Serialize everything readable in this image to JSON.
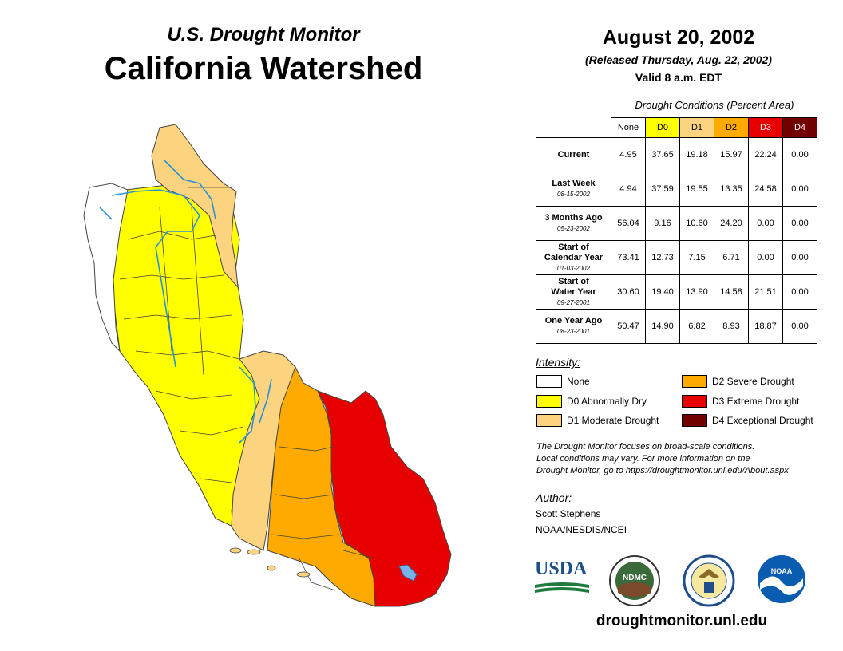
{
  "header": {
    "subtitle": "U.S. Drought Monitor",
    "title": "California Watershed",
    "date": "August 20, 2002",
    "released": "(Released Thursday, Aug. 22, 2002)",
    "valid": "Valid 8 a.m. EDT"
  },
  "table": {
    "title": "Drought Conditions (Percent Area)",
    "columns": [
      "None",
      "D0",
      "D1",
      "D2",
      "D3",
      "D4"
    ],
    "column_colors": [
      "#ffffff",
      "#ffff00",
      "#fcd37f",
      "#ffaa00",
      "#e60000",
      "#730000"
    ],
    "rows": [
      {
        "label": [
          "Current"
        ],
        "date": "",
        "values": [
          "4.95",
          "37.65",
          "19.18",
          "15.97",
          "22.24",
          "0.00"
        ]
      },
      {
        "label": [
          "Last Week"
        ],
        "date": "08-15-2002",
        "values": [
          "4.94",
          "37.59",
          "19.55",
          "13.35",
          "24.58",
          "0.00"
        ]
      },
      {
        "label": [
          "3 Months Ago"
        ],
        "date": "05-23-2002",
        "values": [
          "56.04",
          "9.16",
          "10.60",
          "24.20",
          "0.00",
          "0.00"
        ]
      },
      {
        "label": [
          "Start of",
          "Calendar Year"
        ],
        "date": "01-03-2002",
        "values": [
          "73.41",
          "12.73",
          "7.15",
          "6.71",
          "0.00",
          "0.00"
        ]
      },
      {
        "label": [
          "Start of",
          "Water Year"
        ],
        "date": "09-27-2001",
        "values": [
          "30.60",
          "19.40",
          "13.90",
          "14.58",
          "21.51",
          "0.00"
        ]
      },
      {
        "label": [
          "One Year Ago"
        ],
        "date": "08-23-2001",
        "values": [
          "50.47",
          "14.90",
          "6.82",
          "8.93",
          "18.87",
          "0.00"
        ]
      }
    ]
  },
  "legend": {
    "title": "Intensity:",
    "items": [
      {
        "label": "None",
        "color": "#ffffff"
      },
      {
        "label": "D0 Abnormally Dry",
        "color": "#ffff00"
      },
      {
        "label": "D1 Moderate Drought",
        "color": "#fcd37f"
      },
      {
        "label": "D2 Severe Drought",
        "color": "#ffaa00"
      },
      {
        "label": "D3 Extreme Drought",
        "color": "#e60000"
      },
      {
        "label": "D4 Exceptional Drought",
        "color": "#730000"
      }
    ]
  },
  "note": {
    "line1": "The Drought Monitor focuses on broad-scale conditions.",
    "line2": "Local conditions may vary. For more information on the",
    "line3": "Drought Monitor, go to https://droughtmonitor.unl.edu/About.aspx"
  },
  "author": {
    "title": "Author:",
    "name": "Scott Stephens",
    "org": "NOAA/NESDIS/NCEI"
  },
  "logos": {
    "usda": "USDA",
    "ndmc": "NDMC",
    "noaa": "NOAA"
  },
  "footer": {
    "url": "droughtmonitor.unl.edu"
  }
}
